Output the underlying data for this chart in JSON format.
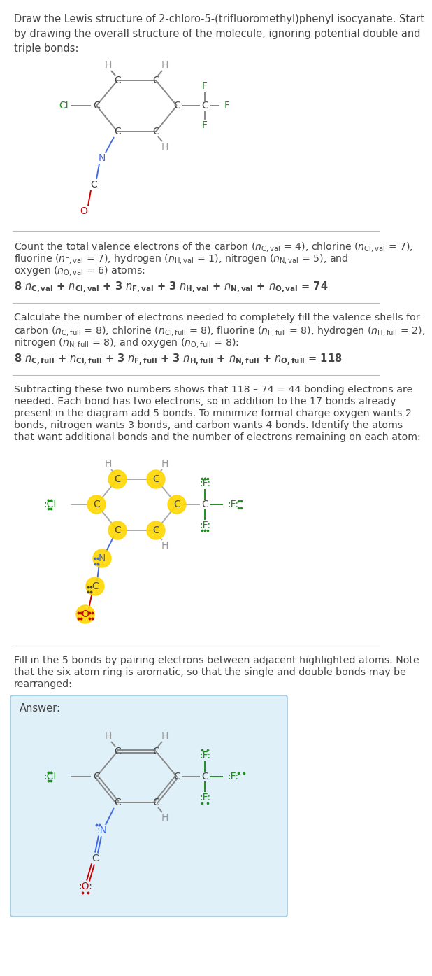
{
  "bg_color": "#ffffff",
  "text_color": "#444444",
  "C_color": "#444444",
  "H_color": "#999999",
  "Cl_color": "#228B22",
  "F_color": "#228B22",
  "N_color": "#4169E1",
  "O_color": "#CC0000",
  "bond_color": "#888888",
  "highlight_color": "#FFD700",
  "highlight_alpha": 0.9,
  "answer_box_color": "#dff0f8",
  "answer_box_edge": "#a0c8e0",
  "sep_color": "#bbbbbb",
  "title": "Draw the Lewis structure of 2-chloro-5-(trifluoromethyl)phenyl isocyanate. Start\nby drawing the overall structure of the molecule, ignoring potential double and\ntriple bonds:",
  "sec1_para": "Count the total valence electrons of the carbon (n_C,val = 4), chlorine (n_Cl,val = 7),\nfluorine (n_F,val = 7), hydrogen (n_H,val = 1), nitrogen (n_N,val = 5), and\noxygen (n_O,val = 6) atoms:",
  "sec1_eq": "8 n_C,val + n_Cl,val + 3 n_F,val + 3 n_H,val + n_N,val + n_O,val = 74",
  "sec2_para": "Calculate the number of electrons needed to completely fill the valence shells for\ncarbon (n_C,full = 8), chlorine (n_Cl,full = 8), fluorine (n_F,full = 8), hydrogen (n_H,full = 2),\nnitrogen (n_N,full = 8), and oxygen (n_O,full = 8):",
  "sec2_eq": "8 n_C,full + n_Cl,full + 3 n_F,full + 3 n_H,full + n_N,full + n_O,full = 118",
  "sec3_para": "Subtracting these two numbers shows that 118 – 74 = 44 bonding electrons are\nneeded. Each bond has two electrons, so in addition to the 17 bonds already\npresent in the diagram add 5 bonds. To minimize formal charge oxygen wants 2\nbonds, nitrogen wants 3 bonds, and carbon wants 4 bonds. Identify the atoms\nthat want additional bonds and the number of electrons remaining on each atom:",
  "sec4_para": "Fill in the 5 bonds by pairing electrons between adjacent highlighted atoms. Note\nthat the six atom ring is aromatic, so that the single and double bonds may be\nrearranged:",
  "answer_label": "Answer:"
}
